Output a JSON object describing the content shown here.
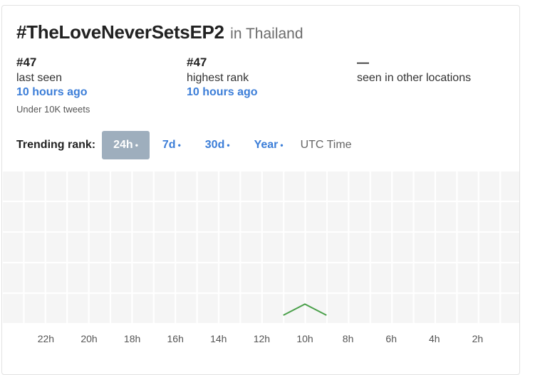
{
  "header": {
    "hashtag": "#TheLoveNeverSetsEP2",
    "location": "in Thailand"
  },
  "stats": [
    {
      "rank": "#47",
      "label": "last seen",
      "time": "10 hours ago",
      "sub": "Under 10K tweets"
    },
    {
      "rank": "#47",
      "label": "highest rank",
      "time": "10 hours ago"
    },
    {
      "rank": "—",
      "label": "seen in other locations"
    }
  ],
  "filters": {
    "label": "Trending rank:",
    "tabs": [
      {
        "label": "24h",
        "dot": "•"
      },
      {
        "label": "7d",
        "dot": "•"
      },
      {
        "label": "30d",
        "dot": "•"
      },
      {
        "label": "Year",
        "dot": "•"
      }
    ],
    "active_index": 0,
    "timezone": "UTC Time"
  },
  "colors": {
    "accent": "#3c7ed8",
    "active_tab_bg": "#9eaebd",
    "line": "#4aa04a",
    "grid_bg": "#f5f5f5"
  },
  "chart_data": {
    "type": "line",
    "x_ticks": [
      "22h",
      "20h",
      "18h",
      "16h",
      "14h",
      "12h",
      "10h",
      "8h",
      "6h",
      "4h",
      "2h"
    ],
    "series": [
      {
        "hours_ago": [
          11,
          10,
          9
        ],
        "rank": [
          60,
          47,
          60
        ]
      }
    ],
    "x_range_hours_ago": [
      24,
      0
    ],
    "grid": true
  }
}
